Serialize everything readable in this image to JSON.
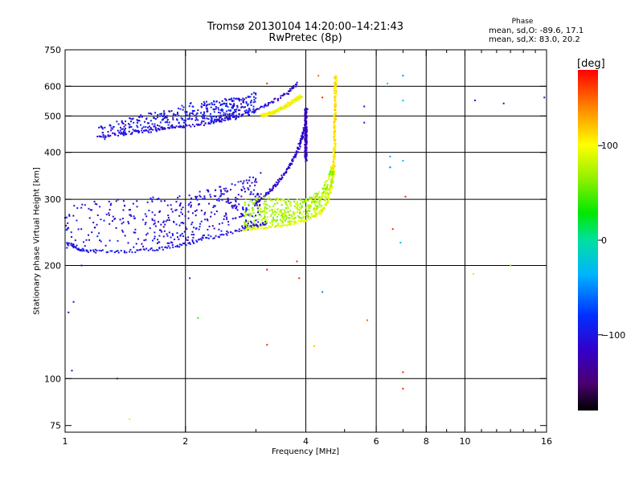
{
  "chart_data": {
    "type": "scatter",
    "title": "Tromsø 20130104 14:20:00–14:21:43",
    "subtitle": "RwPretec (8p)",
    "xlabel": "Frequency [MHz]",
    "ylabel": "Stationary phase Virtual Height [km]",
    "xscale": "log",
    "yscale": "log",
    "xlim": [
      1,
      16
    ],
    "ylim": [
      72,
      750
    ],
    "xticks": [
      1,
      2,
      4,
      6,
      8,
      10,
      16
    ],
    "xtick_labels": [
      "1",
      "2",
      "4",
      "6",
      "8",
      "10",
      "16"
    ],
    "xminor": [
      3,
      5,
      7,
      9,
      11,
      12,
      13,
      14,
      15
    ],
    "yticks": [
      75,
      100,
      200,
      300,
      400,
      500,
      600,
      750
    ],
    "ytick_labels": [
      "75",
      "100",
      "200",
      "300",
      "400",
      "500",
      "600",
      "750"
    ],
    "grid_x": [
      2,
      4,
      6,
      8,
      10
    ],
    "grid_y": [
      100,
      200,
      300,
      400,
      500,
      600
    ],
    "grid": true,
    "stats": {
      "label": "Phase",
      "line_o": "mean, sd,O: -89.6, 17.1",
      "line_x": "mean, sd,X:  83.0, 20.2"
    },
    "colorbar": {
      "label": "[deg]",
      "range": [
        -180,
        180
      ],
      "ticks": [
        100,
        0,
        -100
      ],
      "tick_labels": [
        "100",
        "0",
        "−100"
      ]
    },
    "series": [
      {
        "trace": "o-lower-edge",
        "mode": "trace",
        "phase": -100,
        "x": [
          1.0,
          1.05,
          1.1,
          1.2,
          1.4,
          1.6,
          1.8,
          2.0,
          2.2,
          2.5,
          2.8,
          3.0,
          3.2
        ],
        "y": [
          230,
          225,
          220,
          218,
          218,
          220,
          223,
          228,
          234,
          242,
          250,
          255,
          260
        ]
      },
      {
        "trace": "o-lower-cloud",
        "mode": "band",
        "phase": -108,
        "x": [
          1.0,
          1.3,
          1.6,
          1.9,
          2.2,
          2.5,
          2.8,
          3.1
        ],
        "lo": [
          220,
          222,
          224,
          230,
          235,
          242,
          252,
          260
        ],
        "hi": [
          290,
          300,
          305,
          310,
          320,
          325,
          340,
          355
        ]
      },
      {
        "trace": "o-cusp-lower",
        "mode": "trace",
        "phase": -112,
        "x": [
          3.0,
          3.3,
          3.6,
          3.8,
          3.95,
          4.02
        ],
        "y": [
          290,
          320,
          360,
          400,
          450,
          520
        ]
      },
      {
        "trace": "o-upper-band",
        "mode": "trace",
        "phase": -110,
        "x": [
          1.2,
          1.4,
          1.6,
          1.8,
          2.0,
          2.3,
          2.6,
          3.0,
          3.3,
          3.6,
          3.8
        ],
        "y": [
          440,
          450,
          455,
          465,
          470,
          480,
          495,
          520,
          545,
          575,
          610
        ]
      },
      {
        "trace": "o-upper-cloud",
        "mode": "band",
        "phase": -100,
        "x": [
          1.2,
          1.5,
          1.8,
          2.1,
          2.4,
          2.7,
          3.0
        ],
        "lo": [
          430,
          450,
          460,
          470,
          480,
          490,
          510
        ],
        "hi": [
          470,
          500,
          520,
          545,
          555,
          560,
          580
        ]
      },
      {
        "trace": "x-lower-edge",
        "mode": "trace",
        "phase": 90,
        "x": [
          2.8,
          3.0,
          3.3,
          3.6,
          3.9,
          4.2,
          4.4,
          4.55,
          4.65,
          4.7
        ],
        "y": [
          250,
          252,
          255,
          258,
          262,
          270,
          280,
          300,
          330,
          360
        ]
      },
      {
        "trace": "x-lower-cloud",
        "mode": "band",
        "phase": 75,
        "x": [
          2.8,
          3.2,
          3.6,
          4.0,
          4.4,
          4.7
        ],
        "lo": [
          252,
          256,
          260,
          266,
          285,
          330
        ],
        "hi": [
          300,
          305,
          300,
          300,
          320,
          380
        ]
      },
      {
        "trace": "x-cusp",
        "mode": "trace",
        "phase": 110,
        "x": [
          4.7,
          4.72,
          4.73,
          4.74,
          4.75
        ],
        "y": [
          360,
          420,
          500,
          580,
          640
        ]
      },
      {
        "trace": "x-upper-band",
        "mode": "trace",
        "phase": 100,
        "x": [
          3.1,
          3.3,
          3.5,
          3.7,
          3.9
        ],
        "y": [
          500,
          510,
          525,
          545,
          565
        ]
      },
      {
        "trace": "o-vertical",
        "mode": "trace",
        "phase": -120,
        "x": [
          4.0,
          4.0,
          4.0
        ],
        "y": [
          380,
          450,
          520
        ]
      }
    ],
    "scatter": [
      {
        "x": 1.02,
        "y": 150,
        "phase": -120
      },
      {
        "x": 1.05,
        "y": 160,
        "phase": -95
      },
      {
        "x": 1.04,
        "y": 105,
        "phase": -110
      },
      {
        "x": 1.1,
        "y": 200,
        "phase": -100
      },
      {
        "x": 1.35,
        "y": 100,
        "phase": -150
      },
      {
        "x": 1.45,
        "y": 78,
        "phase": 110
      },
      {
        "x": 2.05,
        "y": 185,
        "phase": -100
      },
      {
        "x": 2.15,
        "y": 145,
        "phase": 40
      },
      {
        "x": 3.2,
        "y": 195,
        "phase": 180
      },
      {
        "x": 3.2,
        "y": 123,
        "phase": 170
      },
      {
        "x": 3.8,
        "y": 205,
        "phase": 170
      },
      {
        "x": 3.85,
        "y": 185,
        "phase": 170
      },
      {
        "x": 4.2,
        "y": 122,
        "phase": 120
      },
      {
        "x": 4.4,
        "y": 170,
        "phase": -50
      },
      {
        "x": 5.7,
        "y": 143,
        "phase": 150
      },
      {
        "x": 5.6,
        "y": 530,
        "phase": -110
      },
      {
        "x": 5.6,
        "y": 480,
        "phase": -100
      },
      {
        "x": 6.4,
        "y": 610,
        "phase": -10
      },
      {
        "x": 6.5,
        "y": 390,
        "phase": -40
      },
      {
        "x": 6.5,
        "y": 365,
        "phase": -60
      },
      {
        "x": 6.6,
        "y": 250,
        "phase": 170
      },
      {
        "x": 6.9,
        "y": 230,
        "phase": -30
      },
      {
        "x": 7.0,
        "y": 640,
        "phase": -50
      },
      {
        "x": 7.0,
        "y": 550,
        "phase": -20
      },
      {
        "x": 7.0,
        "y": 380,
        "phase": -30
      },
      {
        "x": 7.1,
        "y": 305,
        "phase": 170
      },
      {
        "x": 7.0,
        "y": 104,
        "phase": 170
      },
      {
        "x": 7.0,
        "y": 94,
        "phase": 170
      },
      {
        "x": 10.5,
        "y": 190,
        "phase": 110
      },
      {
        "x": 10.6,
        "y": 550,
        "phase": -120
      },
      {
        "x": 12.5,
        "y": 540,
        "phase": -130
      },
      {
        "x": 13.0,
        "y": 200,
        "phase": 60
      },
      {
        "x": 15.8,
        "y": 560,
        "phase": -110
      },
      {
        "x": 4.3,
        "y": 640,
        "phase": 150
      },
      {
        "x": 4.4,
        "y": 560,
        "phase": 170
      },
      {
        "x": 3.2,
        "y": 610,
        "phase": 170
      }
    ]
  }
}
